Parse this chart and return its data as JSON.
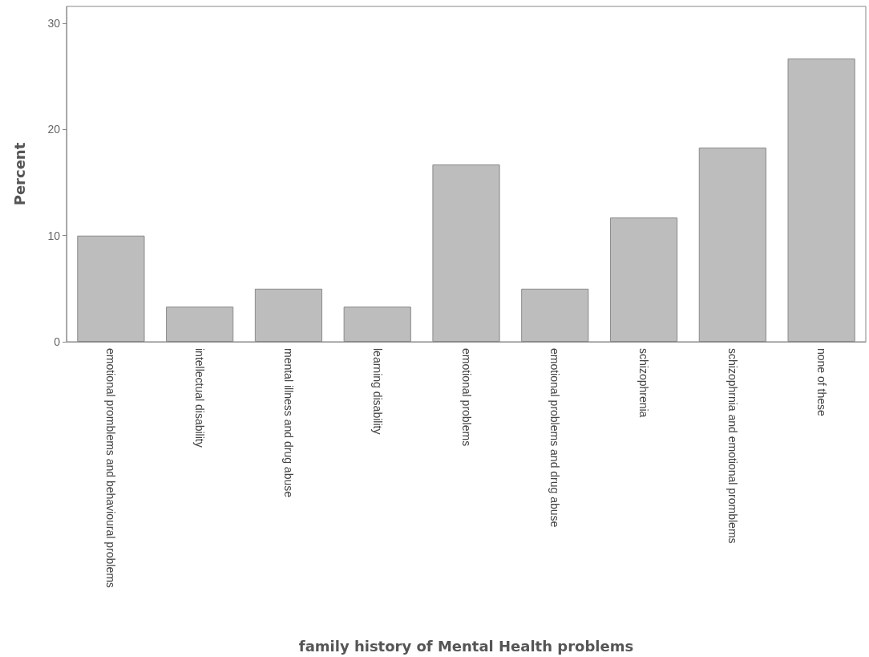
{
  "chart_data": {
    "type": "bar",
    "xlabel": "family history of Mental Health problems",
    "ylabel": "Percent",
    "categories": [
      "emotional promblems and behavioural problems",
      "intellectual disability",
      "mental illness and drug abuse",
      "learning disability",
      "emotional problems",
      "emotional problems and drug abuse",
      "schizophrenia",
      "schizophrnia and emotional promblems",
      "none of these"
    ],
    "values": [
      10.0,
      3.3,
      5.0,
      3.3,
      16.7,
      5.0,
      11.7,
      18.3,
      26.7
    ],
    "color": "#bdbdbd",
    "ylim": [
      0,
      31.6
    ],
    "yticks": [
      0,
      10,
      20,
      30
    ],
    "grid": false
  }
}
